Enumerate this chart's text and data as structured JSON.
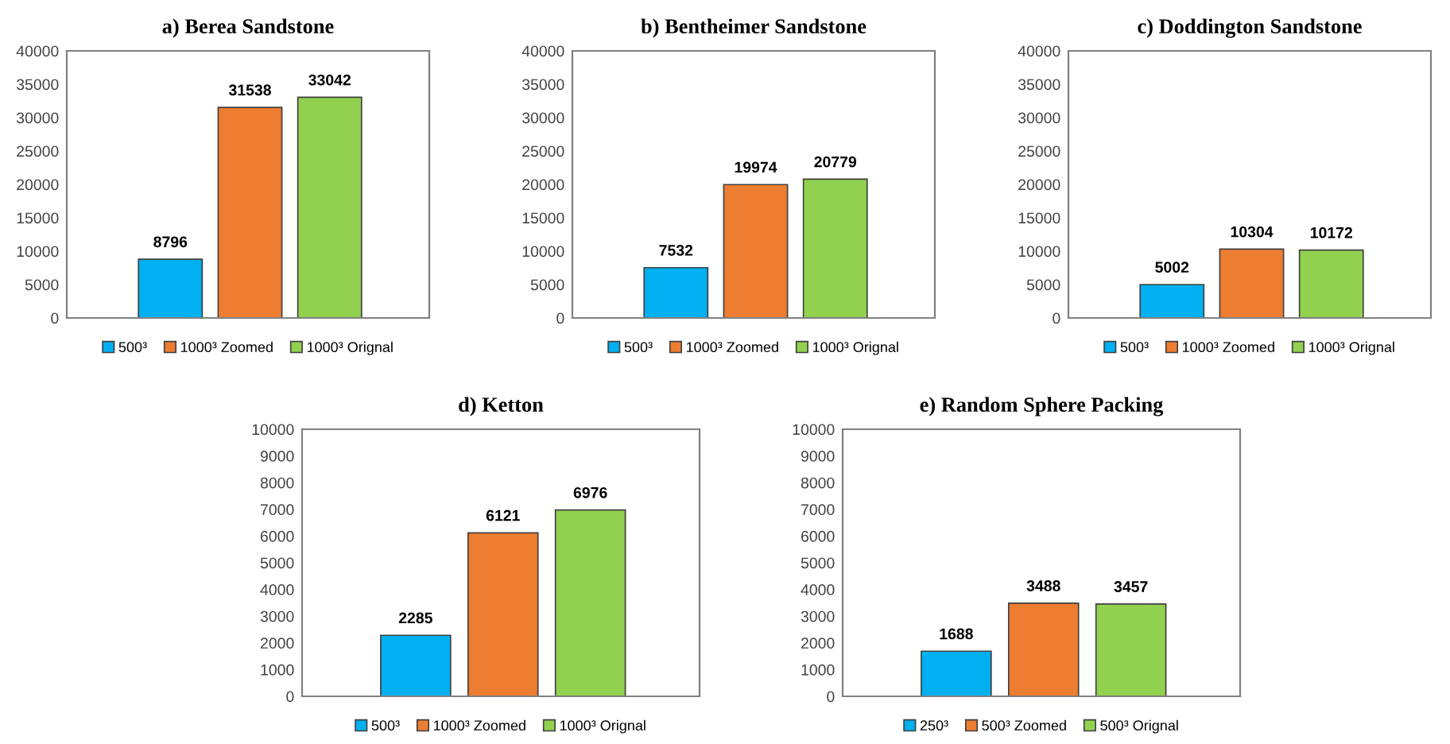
{
  "chart_data": [
    {
      "type": "bar",
      "title": "a) Berea Sandstone",
      "categories": [
        null,
        null,
        null
      ],
      "ylim": [
        0,
        40000
      ],
      "yticks": [
        0,
        5000,
        10000,
        15000,
        20000,
        25000,
        30000,
        35000,
        40000
      ],
      "data_labels": true,
      "legend": "bottom",
      "grid": false,
      "series": [
        {
          "name": "500³",
          "color": "#00b0f0",
          "values": [
            8796,
            null,
            null
          ]
        },
        {
          "name": "1000³ Zoomed",
          "color": "#ed7d31",
          "values": [
            null,
            31538,
            null
          ]
        },
        {
          "name": "1000³ Orignal",
          "color": "#92d050",
          "values": [
            null,
            null,
            33042
          ]
        }
      ]
    },
    {
      "type": "bar",
      "title": "b) Bentheimer Sandstone",
      "categories": [
        null,
        null,
        null
      ],
      "ylim": [
        0,
        40000
      ],
      "yticks": [
        0,
        5000,
        10000,
        15000,
        20000,
        25000,
        30000,
        35000,
        40000
      ],
      "data_labels": true,
      "legend": "bottom",
      "grid": false,
      "series": [
        {
          "name": "500³",
          "color": "#00b0f0",
          "values": [
            7532,
            null,
            null
          ]
        },
        {
          "name": "1000³ Zoomed",
          "color": "#ed7d31",
          "values": [
            null,
            19974,
            null
          ]
        },
        {
          "name": "1000³ Orignal",
          "color": "#92d050",
          "values": [
            null,
            null,
            20779
          ]
        }
      ]
    },
    {
      "type": "bar",
      "title": "c) Doddington Sandstone",
      "categories": [
        null,
        null,
        null
      ],
      "ylim": [
        0,
        40000
      ],
      "yticks": [
        0,
        5000,
        10000,
        15000,
        20000,
        25000,
        30000,
        35000,
        40000
      ],
      "data_labels": true,
      "legend": "bottom",
      "grid": false,
      "series": [
        {
          "name": "500³",
          "color": "#00b0f0",
          "values": [
            5002,
            null,
            null
          ]
        },
        {
          "name": "1000³ Zoomed",
          "color": "#ed7d31",
          "values": [
            null,
            10304,
            null
          ]
        },
        {
          "name": "1000³ Orignal",
          "color": "#92d050",
          "values": [
            null,
            null,
            10172
          ]
        }
      ]
    },
    {
      "type": "bar",
      "title": "d) Ketton",
      "categories": [
        null,
        null,
        null
      ],
      "ylim": [
        0,
        10000
      ],
      "yticks": [
        0,
        1000,
        2000,
        3000,
        4000,
        5000,
        6000,
        7000,
        8000,
        9000,
        10000
      ],
      "data_labels": true,
      "legend": "bottom",
      "grid": false,
      "series": [
        {
          "name": "500³",
          "color": "#00b0f0",
          "values": [
            2285,
            null,
            null
          ]
        },
        {
          "name": "1000³ Zoomed",
          "color": "#ed7d31",
          "values": [
            null,
            6121,
            null
          ]
        },
        {
          "name": "1000³ Orignal",
          "color": "#92d050",
          "values": [
            null,
            null,
            6976
          ]
        }
      ]
    },
    {
      "type": "bar",
      "title": "e) Random Sphere Packing",
      "categories": [
        null,
        null,
        null
      ],
      "ylim": [
        0,
        10000
      ],
      "yticks": [
        0,
        1000,
        2000,
        3000,
        4000,
        5000,
        6000,
        7000,
        8000,
        9000,
        10000
      ],
      "data_labels": true,
      "legend": "bottom",
      "grid": false,
      "series": [
        {
          "name": "250³",
          "color": "#00b0f0",
          "values": [
            1688,
            null,
            null
          ]
        },
        {
          "name": "500³ Zoomed",
          "color": "#ed7d31",
          "values": [
            null,
            3488,
            null
          ]
        },
        {
          "name": "500³ Orignal",
          "color": "#92d050",
          "values": [
            null,
            null,
            3457
          ]
        }
      ]
    }
  ]
}
